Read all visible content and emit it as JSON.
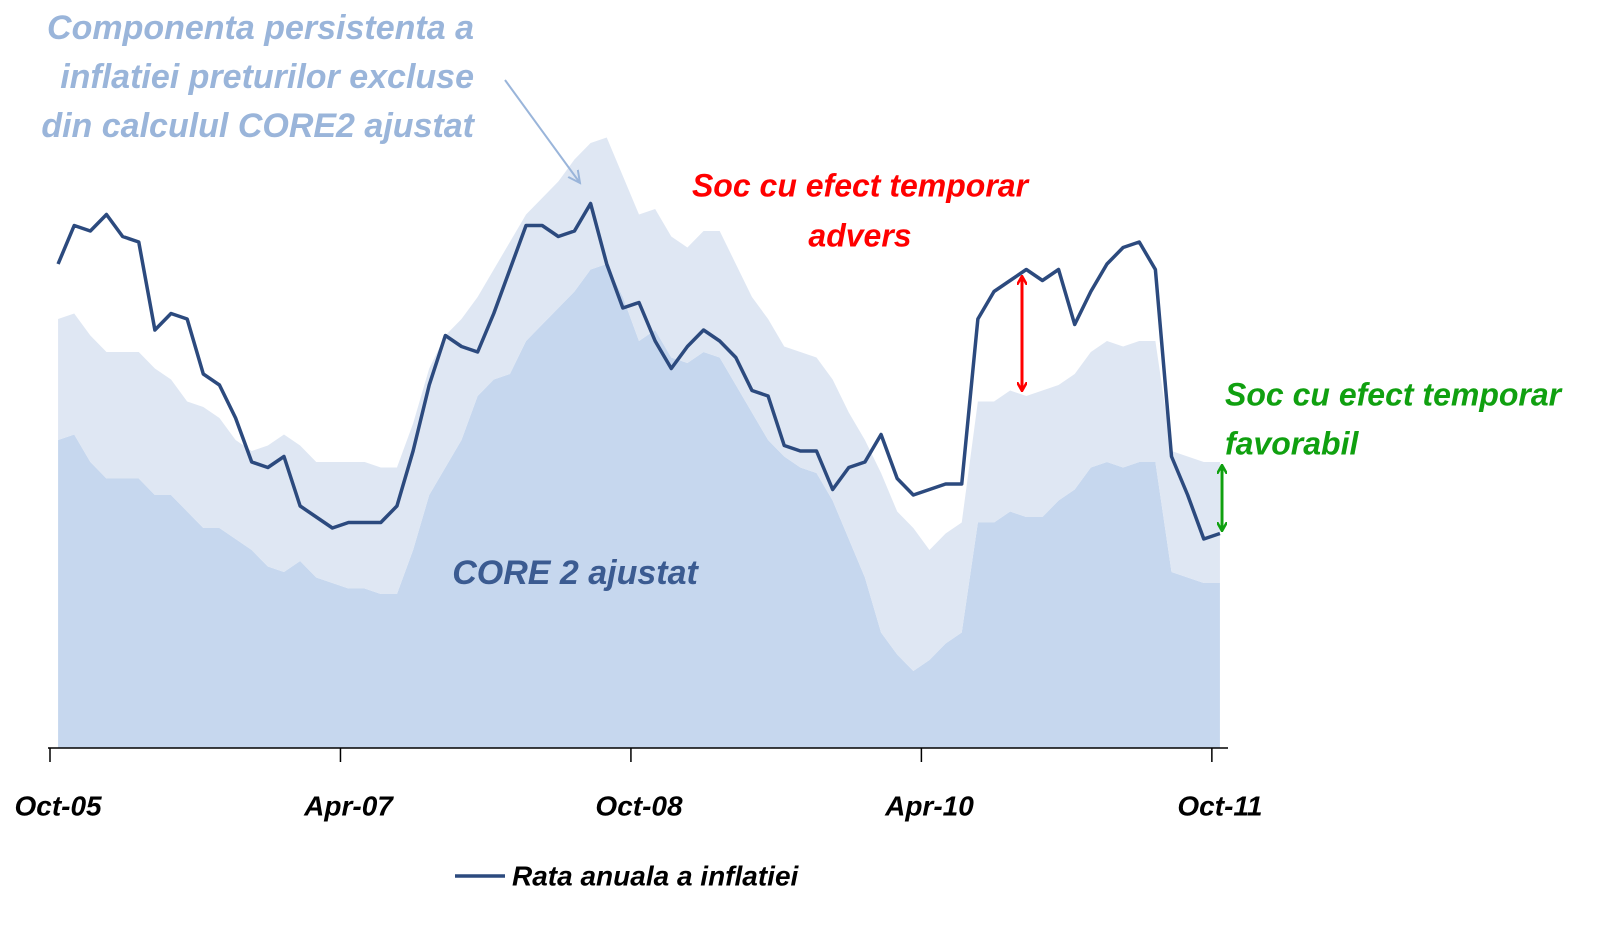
{
  "chart_data": {
    "type": "area",
    "categories": [
      "Oct-05",
      null,
      null,
      null,
      null,
      null,
      null,
      null,
      null,
      null,
      null,
      null,
      null,
      null,
      null,
      null,
      null,
      null,
      "Apr-07",
      null,
      null,
      null,
      null,
      null,
      null,
      null,
      null,
      null,
      null,
      null,
      null,
      null,
      null,
      null,
      null,
      null,
      "Oct-08",
      null,
      null,
      null,
      null,
      null,
      null,
      null,
      null,
      null,
      null,
      null,
      null,
      null,
      null,
      null,
      null,
      null,
      "Apr-10",
      null,
      null,
      null,
      null,
      null,
      null,
      null,
      null,
      null,
      null,
      null,
      null,
      null,
      null,
      null,
      null,
      null,
      "Oct-11"
    ],
    "ylim": [
      0,
      13
    ],
    "series": [
      {
        "type": "area",
        "color": "#c6d7ee",
        "values": [
          5.6,
          5.7,
          5.2,
          4.9,
          4.9,
          4.9,
          4.6,
          4.6,
          4.3,
          4.0,
          4.0,
          3.8,
          3.6,
          3.3,
          3.2,
          3.4,
          3.1,
          3.0,
          2.9,
          2.9,
          2.8,
          2.8,
          3.6,
          4.6,
          5.1,
          5.6,
          6.4,
          6.7,
          6.8,
          7.4,
          7.7,
          8.0,
          8.3,
          8.7,
          8.8,
          8.2,
          7.4,
          7.6,
          7.1,
          7.0,
          7.2,
          7.1,
          6.6,
          6.1,
          5.6,
          5.3,
          5.1,
          5.0,
          4.5,
          3.8,
          3.1,
          2.1,
          1.7,
          1.4,
          1.6,
          1.9,
          2.1,
          4.1,
          4.1,
          4.3,
          4.2,
          4.2,
          4.5,
          4.7,
          5.1,
          5.2,
          5.1,
          5.2,
          5.2,
          3.2,
          3.1,
          3.0,
          3.0
        ]
      },
      {
        "type": "area",
        "color": "#dfe7f3",
        "values": [
          2.2,
          2.2,
          2.3,
          2.3,
          2.3,
          2.3,
          2.3,
          2.1,
          2.0,
          2.2,
          2.0,
          1.8,
          1.8,
          2.2,
          2.5,
          2.1,
          2.1,
          2.2,
          2.3,
          2.3,
          2.3,
          2.3,
          2.3,
          2.3,
          2.4,
          2.2,
          1.8,
          2.0,
          2.4,
          2.3,
          2.3,
          2.3,
          2.4,
          2.3,
          2.3,
          2.2,
          2.3,
          2.2,
          2.2,
          2.1,
          2.2,
          2.3,
          2.2,
          2.1,
          2.2,
          2.0,
          2.1,
          2.1,
          2.2,
          2.3,
          2.5,
          2.9,
          2.6,
          2.6,
          2.0,
          2.0,
          2.0,
          2.2,
          2.2,
          2.2,
          2.2,
          2.3,
          2.1,
          2.1,
          2.1,
          2.2,
          2.2,
          2.2,
          2.2,
          2.2,
          2.2,
          2.2,
          2.2
        ]
      },
      {
        "type": "line",
        "name": "Rata anuala a inflatiei",
        "color": "#2c4a7e",
        "values": [
          8.8,
          9.5,
          9.4,
          9.7,
          9.3,
          9.2,
          7.6,
          7.9,
          7.8,
          6.8,
          6.6,
          6.0,
          5.2,
          5.1,
          5.3,
          4.4,
          4.2,
          4.0,
          4.1,
          4.1,
          4.1,
          4.4,
          5.4,
          6.6,
          7.5,
          7.3,
          7.2,
          7.9,
          8.7,
          9.5,
          9.5,
          9.3,
          9.4,
          9.9,
          8.8,
          8.0,
          8.1,
          7.4,
          6.9,
          7.3,
          7.6,
          7.4,
          7.1,
          6.5,
          6.4,
          5.5,
          5.4,
          5.4,
          4.7,
          5.1,
          5.2,
          5.7,
          4.9,
          4.6,
          4.7,
          4.8,
          4.8,
          7.8,
          8.3,
          8.5,
          8.7,
          8.5,
          8.7,
          7.7,
          8.3,
          8.8,
          9.1,
          9.2,
          8.7,
          5.3,
          4.6,
          3.8,
          3.9
        ]
      }
    ],
    "annotations": [
      {
        "lines": [
          "Componenta persistenta a",
          "inflatiei preturilor excluse",
          "din calculul  CORE2  ajustat"
        ],
        "color": "#9ab5da"
      },
      {
        "lines": [
          "CORE 2 ajustat"
        ],
        "color": "#3b5b91"
      },
      {
        "lines": [
          "Soc cu efect temporar",
          "advers"
        ],
        "color": "#ff0000"
      },
      {
        "lines": [
          "Soc cu efect temporar",
          "favorabil"
        ],
        "color": "#10a010"
      }
    ],
    "legend": "bottom"
  }
}
